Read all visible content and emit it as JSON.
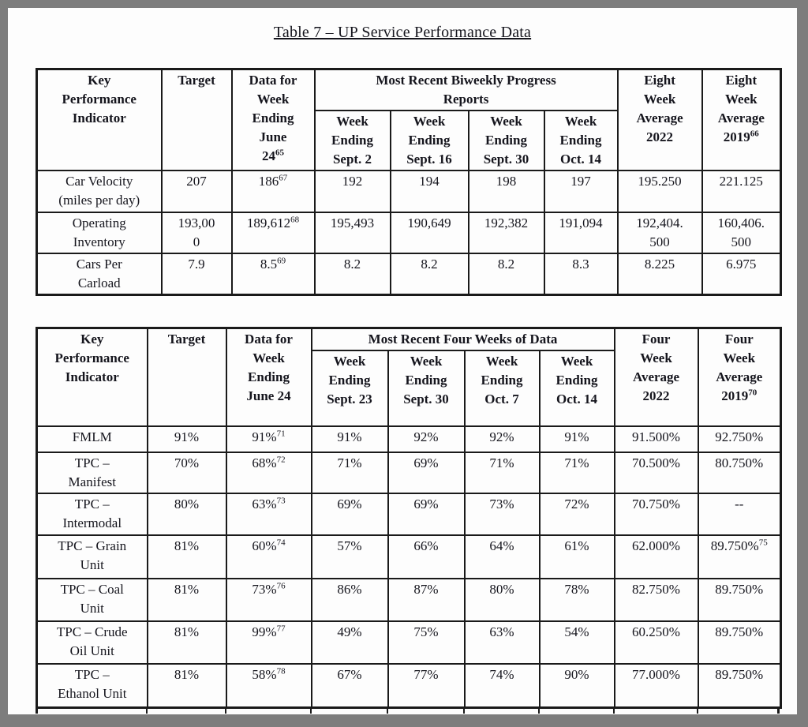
{
  "page": {
    "title": "Table 7 – UP Service Performance Data"
  },
  "table1": {
    "header": {
      "kpi": "Key\nPerformance\nIndicator",
      "target": "Target",
      "data_for": {
        "t": "Data for\nWeek\nEnding\nJune\n24",
        "s": "65"
      },
      "group": "Most Recent Biweekly Progress\nReports",
      "weeks": [
        {
          "t": "Week\nEnding\nSept. 2"
        },
        {
          "t": "Week\nEnding\nSept. 16"
        },
        {
          "t": "Week\nEnding\nSept. 30"
        },
        {
          "t": "Week\nEnding\nOct. 14"
        }
      ],
      "avg2022": {
        "t": "Eight\nWeek\nAverage\n2022"
      },
      "avg2019": {
        "t": "Eight\nWeek\nAverage\n2019",
        "s": "66"
      }
    },
    "rows": [
      [
        {
          "t": "Car Velocity\n(miles per day)"
        },
        {
          "t": "207"
        },
        {
          "t": "186",
          "s": "67"
        },
        {
          "t": "192"
        },
        {
          "t": "194"
        },
        {
          "t": "198"
        },
        {
          "t": "197"
        },
        {
          "t": "195.250"
        },
        {
          "t": "221.125"
        }
      ],
      [
        {
          "t": "Operating\nInventory"
        },
        {
          "t": "193,00\n0"
        },
        {
          "t": "189,612",
          "s": "68"
        },
        {
          "t": "195,493"
        },
        {
          "t": "190,649"
        },
        {
          "t": "192,382"
        },
        {
          "t": "191,094"
        },
        {
          "t": "192,404.\n500"
        },
        {
          "t": "160,406.\n500"
        }
      ],
      [
        {
          "t": "Cars Per\nCarload"
        },
        {
          "t": "7.9"
        },
        {
          "t": "8.5",
          "s": "69"
        },
        {
          "t": "8.2"
        },
        {
          "t": "8.2"
        },
        {
          "t": "8.2"
        },
        {
          "t": "8.3"
        },
        {
          "t": "8.225"
        },
        {
          "t": "6.975"
        }
      ]
    ]
  },
  "table2": {
    "header": {
      "kpi": "Key\nPerformance\nIndicator",
      "target": "Target",
      "data_for": {
        "t": "Data for\nWeek\nEnding\nJune 24"
      },
      "group": "Most Recent Four Weeks of Data",
      "weeks": [
        {
          "t": "Week\nEnding\nSept. 23"
        },
        {
          "t": "Week\nEnding\nSept. 30"
        },
        {
          "t": "Week\nEnding\nOct. 7"
        },
        {
          "t": "Week\nEnding\nOct. 14"
        }
      ],
      "avg2022": {
        "t": "Four\nWeek\nAverage\n2022"
      },
      "avg2019": {
        "t": "Four\nWeek\nAverage\n2019",
        "s": "70"
      }
    },
    "rows": [
      [
        {
          "t": "FMLM"
        },
        {
          "t": "91%"
        },
        {
          "t": "91%",
          "s": "71"
        },
        {
          "t": "91%"
        },
        {
          "t": "92%"
        },
        {
          "t": "92%"
        },
        {
          "t": "91%"
        },
        {
          "t": "91.500%"
        },
        {
          "t": "92.750%"
        }
      ],
      [
        {
          "t": "TPC –\nManifest"
        },
        {
          "t": "70%"
        },
        {
          "t": "68%",
          "s": "72"
        },
        {
          "t": "71%"
        },
        {
          "t": "69%"
        },
        {
          "t": "71%"
        },
        {
          "t": "71%"
        },
        {
          "t": "70.500%"
        },
        {
          "t": "80.750%"
        }
      ],
      [
        {
          "t": "TPC –\nIntermodal"
        },
        {
          "t": "80%"
        },
        {
          "t": "63%",
          "s": "73"
        },
        {
          "t": "69%"
        },
        {
          "t": "69%"
        },
        {
          "t": "73%"
        },
        {
          "t": "72%"
        },
        {
          "t": "70.750%"
        },
        {
          "t": "--"
        }
      ],
      [
        {
          "t": "TPC – Grain\nUnit"
        },
        {
          "t": "81%"
        },
        {
          "t": "60%",
          "s": "74"
        },
        {
          "t": "57%"
        },
        {
          "t": "66%"
        },
        {
          "t": "64%"
        },
        {
          "t": "61%"
        },
        {
          "t": "62.000%"
        },
        {
          "t": "89.750%",
          "s": "75"
        }
      ],
      [
        {
          "t": "TPC – Coal\nUnit"
        },
        {
          "t": "81%"
        },
        {
          "t": "73%",
          "s": "76"
        },
        {
          "t": "86%"
        },
        {
          "t": "87%"
        },
        {
          "t": "80%"
        },
        {
          "t": "78%"
        },
        {
          "t": "82.750%"
        },
        {
          "t": "89.750%"
        }
      ],
      [
        {
          "t": "TPC – Crude\nOil Unit"
        },
        {
          "t": "81%"
        },
        {
          "t": "99%",
          "s": "77"
        },
        {
          "t": "49%"
        },
        {
          "t": "75%"
        },
        {
          "t": "63%"
        },
        {
          "t": "54%"
        },
        {
          "t": "60.250%"
        },
        {
          "t": "89.750%"
        }
      ],
      [
        {
          "t": "TPC –\nEthanol Unit"
        },
        {
          "t": "81%"
        },
        {
          "t": "58%",
          "s": "78"
        },
        {
          "t": "67%"
        },
        {
          "t": "77%"
        },
        {
          "t": "74%"
        },
        {
          "t": "90%"
        },
        {
          "t": "77.000%"
        },
        {
          "t": "89.750%"
        }
      ]
    ]
  }
}
